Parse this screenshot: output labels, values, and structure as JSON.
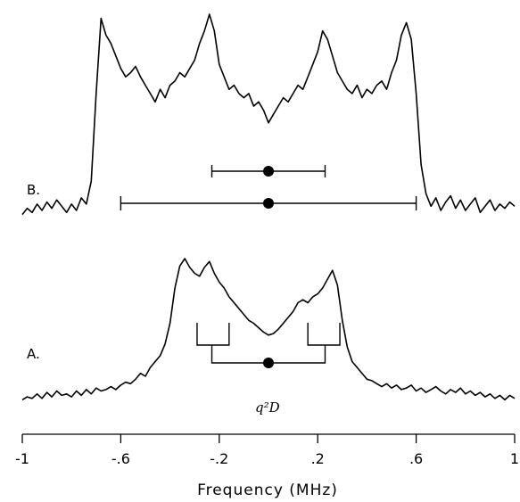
{
  "chart_data": {
    "type": "line",
    "xlabel": "Frequency (MHz)",
    "xlim": [
      -1,
      1
    ],
    "x_ticks": [
      -1,
      -0.6,
      -0.2,
      0.2,
      0.6,
      1
    ],
    "x_tick_labels": [
      "-1",
      "-.6",
      "-.2",
      ".2",
      ".6",
      "1"
    ],
    "grid": false,
    "legend": "none",
    "series": [
      {
        "name": "B.",
        "x": [
          -1.0,
          -0.98,
          -0.96,
          -0.94,
          -0.92,
          -0.9,
          -0.88,
          -0.86,
          -0.84,
          -0.82,
          -0.8,
          -0.78,
          -0.76,
          -0.74,
          -0.72,
          -0.7,
          -0.68,
          -0.66,
          -0.64,
          -0.62,
          -0.6,
          -0.58,
          -0.56,
          -0.54,
          -0.52,
          -0.5,
          -0.48,
          -0.46,
          -0.44,
          -0.42,
          -0.4,
          -0.38,
          -0.36,
          -0.34,
          -0.32,
          -0.3,
          -0.28,
          -0.26,
          -0.24,
          -0.22,
          -0.2,
          -0.18,
          -0.16,
          -0.14,
          -0.12,
          -0.1,
          -0.08,
          -0.06,
          -0.04,
          -0.02,
          0.0,
          0.02,
          0.04,
          0.06,
          0.08,
          0.1,
          0.12,
          0.14,
          0.16,
          0.18,
          0.2,
          0.22,
          0.24,
          0.26,
          0.28,
          0.3,
          0.32,
          0.34,
          0.36,
          0.38,
          0.4,
          0.42,
          0.44,
          0.46,
          0.48,
          0.5,
          0.52,
          0.54,
          0.56,
          0.58,
          0.6,
          0.62,
          0.64,
          0.66,
          0.68,
          0.7,
          0.72,
          0.74,
          0.76,
          0.78,
          0.8,
          0.82,
          0.84,
          0.86,
          0.88,
          0.9,
          0.92,
          0.94,
          0.96,
          0.98,
          1.0
        ],
        "y": [
          0.04,
          0.07,
          0.05,
          0.09,
          0.06,
          0.1,
          0.07,
          0.11,
          0.08,
          0.05,
          0.09,
          0.06,
          0.12,
          0.09,
          0.2,
          0.62,
          0.98,
          0.9,
          0.86,
          0.8,
          0.74,
          0.7,
          0.72,
          0.75,
          0.7,
          0.66,
          0.62,
          0.58,
          0.64,
          0.6,
          0.66,
          0.68,
          0.72,
          0.7,
          0.74,
          0.78,
          0.86,
          0.92,
          1.0,
          0.92,
          0.76,
          0.7,
          0.64,
          0.66,
          0.62,
          0.6,
          0.62,
          0.56,
          0.58,
          0.54,
          0.48,
          0.52,
          0.56,
          0.6,
          0.58,
          0.62,
          0.66,
          0.64,
          0.7,
          0.76,
          0.82,
          0.92,
          0.88,
          0.8,
          0.72,
          0.68,
          0.64,
          0.62,
          0.66,
          0.6,
          0.64,
          0.62,
          0.66,
          0.68,
          0.64,
          0.72,
          0.78,
          0.9,
          0.96,
          0.88,
          0.62,
          0.28,
          0.14,
          0.08,
          0.12,
          0.06,
          0.1,
          0.13,
          0.07,
          0.11,
          0.06,
          0.09,
          0.12,
          0.05,
          0.08,
          0.11,
          0.06,
          0.09,
          0.07,
          0.1,
          0.08
        ]
      },
      {
        "name": "A.",
        "x": [
          -1.0,
          -0.98,
          -0.96,
          -0.94,
          -0.92,
          -0.9,
          -0.88,
          -0.86,
          -0.84,
          -0.82,
          -0.8,
          -0.78,
          -0.76,
          -0.74,
          -0.72,
          -0.7,
          -0.68,
          -0.66,
          -0.64,
          -0.62,
          -0.6,
          -0.58,
          -0.56,
          -0.54,
          -0.52,
          -0.5,
          -0.48,
          -0.46,
          -0.44,
          -0.42,
          -0.4,
          -0.38,
          -0.36,
          -0.34,
          -0.32,
          -0.3,
          -0.28,
          -0.26,
          -0.24,
          -0.22,
          -0.2,
          -0.18,
          -0.16,
          -0.14,
          -0.12,
          -0.1,
          -0.08,
          -0.06,
          -0.04,
          -0.02,
          0.0,
          0.02,
          0.04,
          0.06,
          0.08,
          0.1,
          0.12,
          0.14,
          0.16,
          0.18,
          0.2,
          0.22,
          0.24,
          0.26,
          0.28,
          0.3,
          0.32,
          0.34,
          0.36,
          0.38,
          0.4,
          0.42,
          0.44,
          0.46,
          0.48,
          0.5,
          0.52,
          0.54,
          0.56,
          0.58,
          0.6,
          0.62,
          0.64,
          0.66,
          0.68,
          0.7,
          0.72,
          0.74,
          0.76,
          0.78,
          0.8,
          0.82,
          0.84,
          0.86,
          0.88,
          0.9,
          0.92,
          0.94,
          0.96,
          0.98,
          1.0
        ],
        "y": [
          0.04,
          0.06,
          0.05,
          0.08,
          0.05,
          0.09,
          0.06,
          0.1,
          0.07,
          0.08,
          0.06,
          0.1,
          0.07,
          0.11,
          0.08,
          0.12,
          0.1,
          0.11,
          0.13,
          0.11,
          0.14,
          0.16,
          0.15,
          0.18,
          0.22,
          0.2,
          0.26,
          0.3,
          0.34,
          0.42,
          0.56,
          0.8,
          0.95,
          1.0,
          0.94,
          0.9,
          0.88,
          0.94,
          0.98,
          0.9,
          0.84,
          0.8,
          0.74,
          0.7,
          0.66,
          0.62,
          0.58,
          0.56,
          0.53,
          0.5,
          0.48,
          0.49,
          0.52,
          0.56,
          0.6,
          0.64,
          0.7,
          0.72,
          0.7,
          0.74,
          0.76,
          0.8,
          0.86,
          0.92,
          0.82,
          0.58,
          0.4,
          0.3,
          0.26,
          0.22,
          0.18,
          0.17,
          0.15,
          0.13,
          0.15,
          0.12,
          0.14,
          0.11,
          0.12,
          0.14,
          0.1,
          0.12,
          0.09,
          0.11,
          0.13,
          0.1,
          0.08,
          0.11,
          0.09,
          0.12,
          0.08,
          0.1,
          0.07,
          0.09,
          0.06,
          0.08,
          0.05,
          0.07,
          0.04,
          0.07,
          0.05
        ]
      }
    ],
    "annotations": {
      "panel_labels": [
        "B.",
        "A."
      ],
      "splitting_label": "q²D",
      "splittings_mhz": {
        "B_inner": [
          -0.23,
          0.23
        ],
        "B_outer": [
          -0.6,
          0.6
        ],
        "A_inner": [
          -0.23,
          0.23
        ],
        "A_left_bracket": [
          -0.29,
          -0.16
        ],
        "A_right_bracket": [
          0.16,
          0.29
        ]
      },
      "center_mhz": 0
    }
  }
}
